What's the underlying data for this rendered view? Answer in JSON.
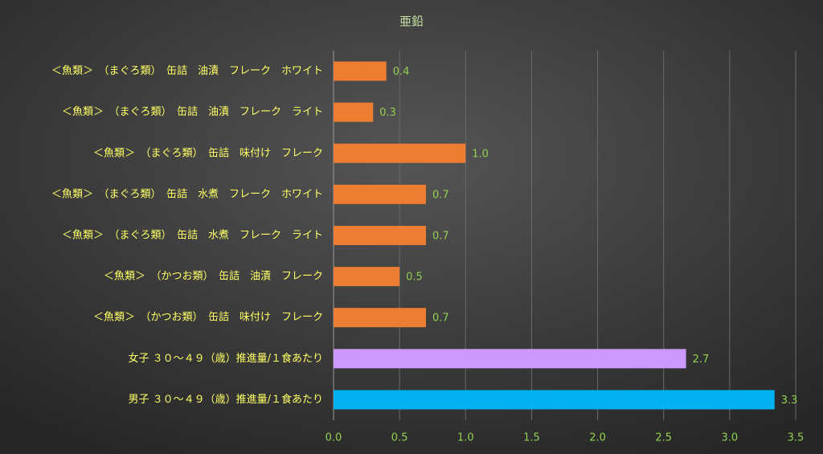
{
  "chart_data": {
    "type": "barh",
    "title": "亜鉛",
    "categories": [
      "＜魚類＞　（まぐろ類）　缶詰　油漬　フレーク　ホワイト",
      "＜魚類＞　（まぐろ類）　缶詰　油漬　フレーク　ライト",
      "＜魚類＞　（まぐろ類）　缶詰　味付け　フレーク",
      "＜魚類＞　（まぐろ類）　缶詰　水煮　フレーク　ホワイト",
      "＜魚類＞　（まぐろ類）　缶詰　水煮　フレーク　ライト",
      "＜魚類＞　（かつお類）　缶詰　油漬　フレーク",
      "＜魚類＞　（かつお類）　缶詰　味付け　フレーク",
      "女子 ３０～４９（歳）推進量/１食あたり",
      "男子 ３０～４９（歳）推進量/１食あたり"
    ],
    "values": [
      0.4,
      0.3,
      1.0,
      0.7,
      0.7,
      0.5,
      0.7,
      2.67,
      3.34
    ],
    "value_labels": [
      "0.4",
      "0.3",
      "1.0",
      "0.7",
      "0.7",
      "0.5",
      "0.7",
      "2.7",
      "3.3"
    ],
    "colors": [
      "#ed7d31",
      "#ed7d31",
      "#ed7d31",
      "#ed7d31",
      "#ed7d31",
      "#ed7d31",
      "#ed7d31",
      "#cc99ff",
      "#00b0f0"
    ],
    "xlim": [
      0,
      3.5
    ],
    "xticks": [
      {
        "value": 0,
        "label": "0.0"
      },
      0.5,
      {
        "value": 1,
        "label": "1.0"
      },
      1.5,
      {
        "value": 2,
        "label": "2.0"
      },
      2.5,
      {
        "value": 3,
        "label": "3.0"
      },
      3.5
    ],
    "grid": true
  }
}
